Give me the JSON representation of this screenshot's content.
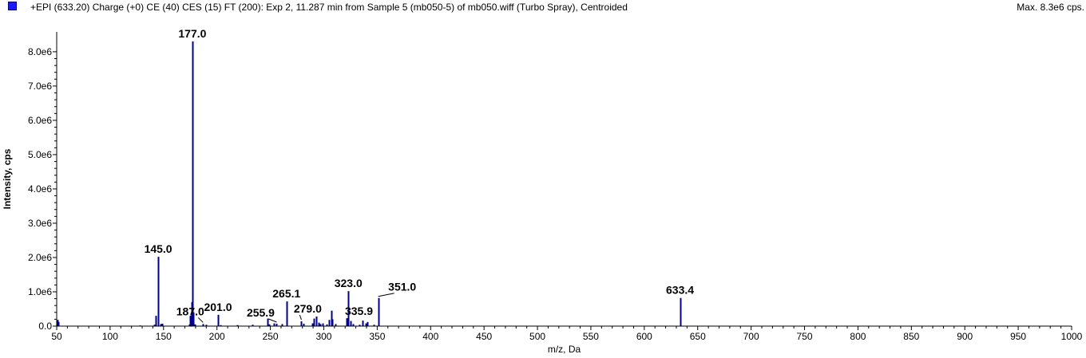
{
  "header": {
    "title": "+EPI (633.20) Charge (+0) CE (40) CES (15) FT (200): Exp 2, 11.287 min from Sample 5 (mb050-5) of mb050.wiff (Turbo Spray), Centroided",
    "max": "Max. 8.3e6 cps.",
    "swatch_color": "#1a1aff"
  },
  "chart_data": {
    "type": "bar",
    "xlabel": "m/z, Da",
    "ylabel": "Intensity, cps",
    "xlim": [
      50,
      1000
    ],
    "ylim": [
      0,
      8300000
    ],
    "x_ticks": [
      50,
      100,
      150,
      200,
      250,
      300,
      350,
      400,
      450,
      500,
      550,
      600,
      650,
      700,
      750,
      800,
      850,
      900,
      950,
      1000
    ],
    "y_ticks": [
      {
        "value": 0,
        "label": "0.0"
      },
      {
        "value": 1000000,
        "label": "1.0e6"
      },
      {
        "value": 2000000,
        "label": "2.0e6"
      },
      {
        "value": 3000000,
        "label": "3.0e6"
      },
      {
        "value": 4000000,
        "label": "4.0e6"
      },
      {
        "value": 5000000,
        "label": "5.0e6"
      },
      {
        "value": 6000000,
        "label": "6.0e6"
      },
      {
        "value": 7000000,
        "label": "7.0e6"
      },
      {
        "value": 8000000,
        "label": "8.0e6"
      }
    ],
    "series_color": "#00008b",
    "peaks": [
      {
        "mz": 50.5,
        "intensity": 180000
      },
      {
        "mz": 51.5,
        "intensity": 120000
      },
      {
        "mz": 128.0,
        "intensity": 20000
      },
      {
        "mz": 141.0,
        "intensity": 40000
      },
      {
        "mz": 143.0,
        "intensity": 300000
      },
      {
        "mz": 145.0,
        "intensity": 2020000
      },
      {
        "mz": 147.0,
        "intensity": 60000
      },
      {
        "mz": 149.0,
        "intensity": 70000
      },
      {
        "mz": 174.0,
        "intensity": 50000
      },
      {
        "mz": 175.0,
        "intensity": 300000
      },
      {
        "mz": 176.0,
        "intensity": 700000
      },
      {
        "mz": 177.0,
        "intensity": 8300000
      },
      {
        "mz": 178.0,
        "intensity": 400000
      },
      {
        "mz": 179.0,
        "intensity": 50000
      },
      {
        "mz": 187.0,
        "intensity": 60000
      },
      {
        "mz": 190.0,
        "intensity": 40000
      },
      {
        "mz": 201.0,
        "intensity": 330000
      },
      {
        "mz": 203.0,
        "intensity": 30000
      },
      {
        "mz": 219.0,
        "intensity": 30000
      },
      {
        "mz": 233.0,
        "intensity": 40000
      },
      {
        "mz": 247.0,
        "intensity": 220000
      },
      {
        "mz": 249.0,
        "intensity": 50000
      },
      {
        "mz": 253.0,
        "intensity": 80000
      },
      {
        "mz": 255.9,
        "intensity": 70000
      },
      {
        "mz": 261.0,
        "intensity": 60000
      },
      {
        "mz": 265.1,
        "intensity": 720000
      },
      {
        "mz": 279.0,
        "intensity": 140000
      },
      {
        "mz": 281.0,
        "intensity": 70000
      },
      {
        "mz": 289.0,
        "intensity": 80000
      },
      {
        "mz": 291.0,
        "intensity": 220000
      },
      {
        "mz": 293.0,
        "intensity": 280000
      },
      {
        "mz": 295.0,
        "intensity": 100000
      },
      {
        "mz": 297.0,
        "intensity": 60000
      },
      {
        "mz": 299.0,
        "intensity": 80000
      },
      {
        "mz": 303.0,
        "intensity": 50000
      },
      {
        "mz": 305.0,
        "intensity": 180000
      },
      {
        "mz": 307.0,
        "intensity": 450000
      },
      {
        "mz": 308.0,
        "intensity": 200000
      },
      {
        "mz": 311.0,
        "intensity": 60000
      },
      {
        "mz": 321.0,
        "intensity": 230000
      },
      {
        "mz": 323.0,
        "intensity": 1020000
      },
      {
        "mz": 325.0,
        "intensity": 150000
      },
      {
        "mz": 327.0,
        "intensity": 60000
      },
      {
        "mz": 333.0,
        "intensity": 40000
      },
      {
        "mz": 335.9,
        "intensity": 160000
      },
      {
        "mz": 339.0,
        "intensity": 80000
      },
      {
        "mz": 341.0,
        "intensity": 120000
      },
      {
        "mz": 347.0,
        "intensity": 40000
      },
      {
        "mz": 351.0,
        "intensity": 820000
      },
      {
        "mz": 633.4,
        "intensity": 820000
      }
    ],
    "annotations": [
      {
        "label": "177.0",
        "mz": 177.0
      },
      {
        "label": "145.0",
        "mz": 145.0
      },
      {
        "label": "187.0",
        "mz": 187.0
      },
      {
        "label": "201.0",
        "mz": 201.0
      },
      {
        "label": "255.9",
        "mz": 255.9
      },
      {
        "label": "265.1",
        "mz": 265.1
      },
      {
        "label": "279.0",
        "mz": 279.0
      },
      {
        "label": "323.0",
        "mz": 323.0
      },
      {
        "label": "335.9",
        "mz": 335.9
      },
      {
        "label": "351.0",
        "mz": 351.0
      },
      {
        "label": "633.4",
        "mz": 633.4
      }
    ]
  }
}
